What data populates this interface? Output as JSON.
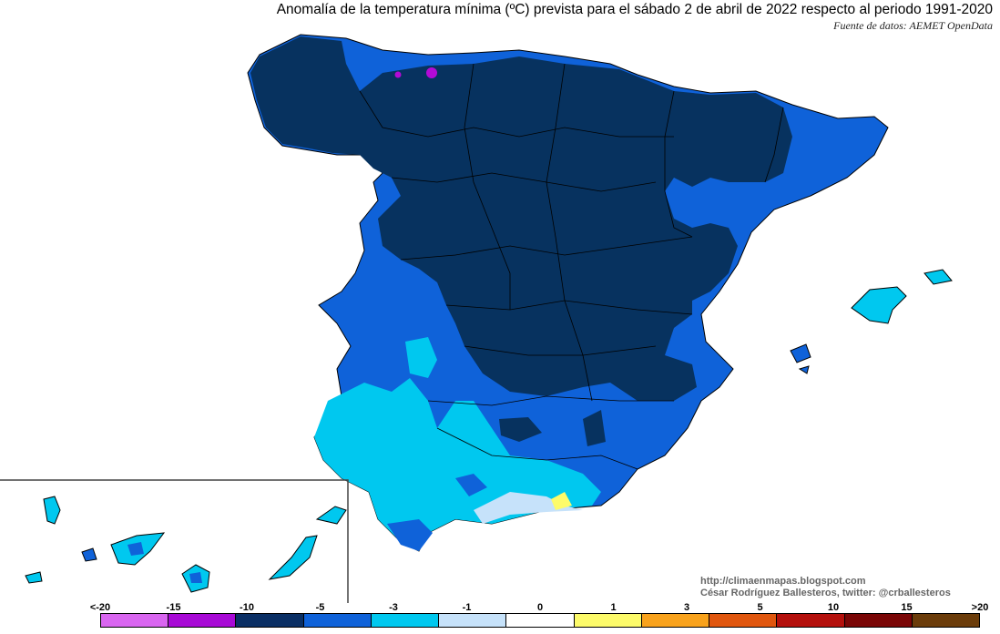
{
  "title": "Anomalía de la temperatura mínima (ºC) prevista para el sábado 2 de abril de 2022 respecto al periodo 1991-2020",
  "source": "Fuente de datos: AEMET OpenData",
  "credits": {
    "blog": "http://climaenmapas.blogspot.com",
    "author": "César Rodríguez Ballesteros, twitter: @crballesteros"
  },
  "legend": {
    "labels": [
      "<-20",
      "-15",
      "-10",
      "-5",
      "-3",
      "-1",
      "0",
      "1",
      "3",
      "5",
      "10",
      "15",
      ">20"
    ],
    "colors": [
      "#d966f0",
      "#a80ad6",
      "#0a2f64",
      "#0f62d9",
      "#00c8ef",
      "#c6e2fa",
      "#ffffff",
      "#fdfb6a",
      "#f8a21c",
      "#e0560e",
      "#b4100c",
      "#7a0606"
    ],
    "extra_color": "#6b3c0a"
  },
  "colors": {
    "very_cold": "#07325f",
    "cold": "#0f62d9",
    "cool": "#00c8ef",
    "light": "#c6e2fa",
    "magenta": "#b30ad6",
    "yellow": "#fdfb6a"
  }
}
